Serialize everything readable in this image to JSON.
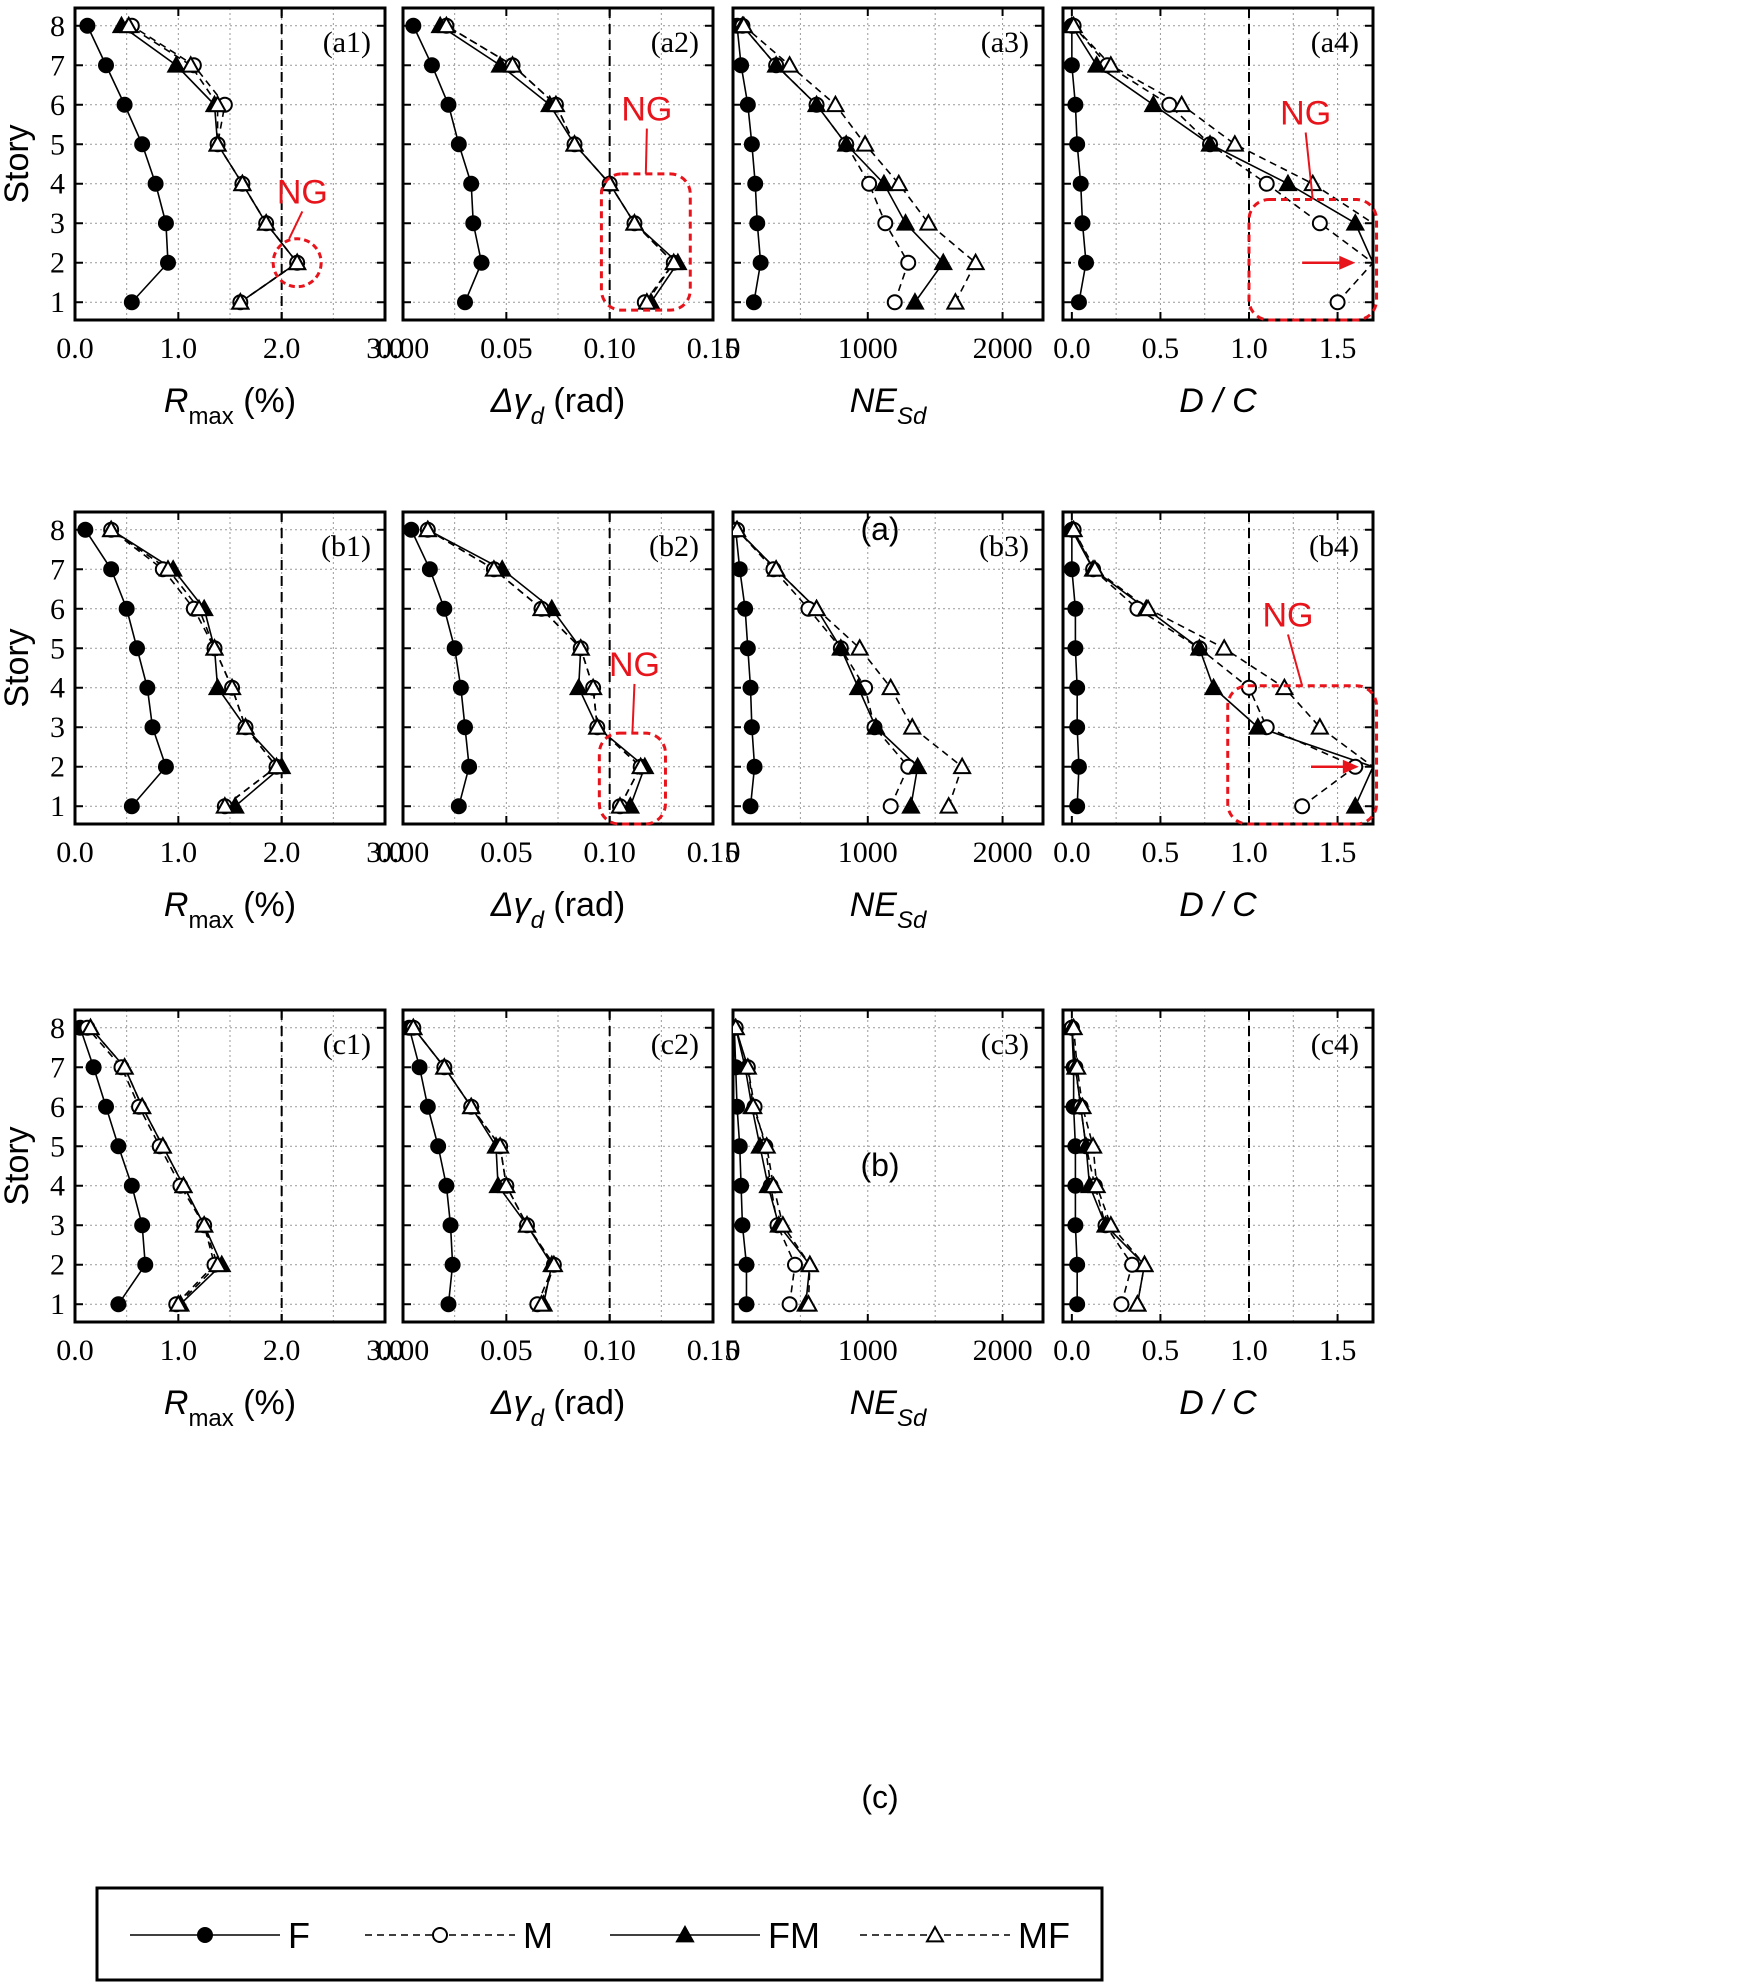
{
  "legend": {
    "entries": [
      {
        "name": "F",
        "marker": "circle",
        "filled": true,
        "dashed": false
      },
      {
        "name": "M",
        "marker": "circle",
        "filled": false,
        "dashed": true
      },
      {
        "name": "FM",
        "marker": "triangle",
        "filled": true,
        "dashed": false
      },
      {
        "name": "MF",
        "marker": "triangle",
        "filled": false,
        "dashed": true
      }
    ]
  },
  "ng_label": "NG",
  "ng_color": "#e8141c",
  "row_captions": [
    "(a)",
    "(b)",
    "(c)"
  ],
  "ylabel": "Story",
  "yticks": [
    "1",
    "2",
    "3",
    "4",
    "5",
    "6",
    "7",
    "8"
  ],
  "chart_data": [
    {
      "type": "line",
      "panel": "(a1)",
      "ylabel": "Story",
      "xlabel_main": "R",
      "xlabel_sub": "max",
      "xlabel_tail": " (%)",
      "xlim": [
        0,
        3.0
      ],
      "xticks": [
        "0.0",
        "1.0",
        "2.0",
        "3.0"
      ],
      "xtick_values": [
        0,
        1,
        2,
        3
      ],
      "limit": 2.0,
      "stories": [
        1,
        2,
        3,
        4,
        5,
        6,
        7,
        8
      ],
      "series": [
        {
          "name": "F",
          "values": [
            0.55,
            0.9,
            0.88,
            0.78,
            0.65,
            0.48,
            0.3,
            0.12
          ]
        },
        {
          "name": "M",
          "values": [
            1.6,
            2.15,
            1.85,
            1.62,
            1.38,
            1.45,
            1.15,
            0.55
          ]
        },
        {
          "name": "FM",
          "values": [
            1.6,
            2.15,
            1.85,
            1.62,
            1.38,
            1.35,
            0.98,
            0.45
          ]
        },
        {
          "name": "MF",
          "values": [
            1.6,
            2.15,
            1.85,
            1.62,
            1.38,
            1.38,
            1.12,
            0.52
          ]
        }
      ],
      "ng": {
        "shape": "circle",
        "x": 2.15,
        "story": 2,
        "text_x": 2.2,
        "text_story": 3.5
      }
    },
    {
      "type": "line",
      "panel": "(a2)",
      "xlabel_main": "Δγ",
      "xlabel_sub": "d",
      "xlabel_tail": " (rad)",
      "xlim": [
        0,
        0.15
      ],
      "xticks": [
        "0.00",
        "0.05",
        "0.10",
        "0.15"
      ],
      "xtick_values": [
        0,
        0.05,
        0.1,
        0.15
      ],
      "limit": 0.1,
      "stories": [
        1,
        2,
        3,
        4,
        5,
        6,
        7,
        8
      ],
      "series": [
        {
          "name": "F",
          "values": [
            0.03,
            0.038,
            0.034,
            0.033,
            0.027,
            0.022,
            0.014,
            0.005
          ]
        },
        {
          "name": "M",
          "values": [
            0.117,
            0.131,
            0.112,
            0.1,
            0.083,
            0.074,
            0.053,
            0.021
          ]
        },
        {
          "name": "FM",
          "values": [
            0.12,
            0.133,
            0.112,
            0.1,
            0.083,
            0.071,
            0.047,
            0.018
          ]
        },
        {
          "name": "MF",
          "values": [
            0.118,
            0.131,
            0.112,
            0.1,
            0.083,
            0.074,
            0.053,
            0.021
          ]
        }
      ],
      "ng": {
        "shape": "rect",
        "x0": 0.096,
        "x1": 0.139,
        "story0": 0.8,
        "story1": 4.25,
        "text_x": 0.118,
        "text_story": 5.6
      }
    },
    {
      "type": "line",
      "panel": "(a3)",
      "xlabel_main": "NE",
      "xlabel_sub": "Sd",
      "xlabel_tail": "",
      "xlim": [
        0,
        2300
      ],
      "xticks": [
        "0",
        "1000",
        "2000"
      ],
      "xtick_values": [
        0,
        1000,
        2000
      ],
      "stories": [
        1,
        2,
        3,
        4,
        5,
        6,
        7,
        8
      ],
      "series": [
        {
          "name": "F",
          "values": [
            155,
            205,
            180,
            165,
            140,
            110,
            60,
            30
          ]
        },
        {
          "name": "M",
          "values": [
            1200,
            1300,
            1130,
            1010,
            840,
            620,
            320,
            70
          ]
        },
        {
          "name": "FM",
          "values": [
            1350,
            1560,
            1280,
            1120,
            840,
            620,
            320,
            70
          ]
        },
        {
          "name": "MF",
          "values": [
            1650,
            1800,
            1450,
            1230,
            980,
            760,
            420,
            80
          ]
        }
      ]
    },
    {
      "type": "line",
      "panel": "(a4)",
      "xlabel_main": "D / C",
      "xlabel_sub": "",
      "xlabel_tail": "",
      "xlim": [
        -0.05,
        1.7
      ],
      "xticks": [
        "0.0",
        "0.5",
        "1.0",
        "1.5"
      ],
      "xtick_values": [
        0,
        0.5,
        1,
        1.5
      ],
      "limit": 1.0,
      "stories": [
        1,
        2,
        3,
        4,
        5,
        6,
        7,
        8
      ],
      "series": [
        {
          "name": "F",
          "values": [
            0.04,
            0.08,
            0.06,
            0.05,
            0.03,
            0.02,
            0.0,
            0.0
          ]
        },
        {
          "name": "M",
          "values": [
            1.5,
            1.82,
            1.4,
            1.1,
            0.78,
            0.55,
            0.2,
            0.01
          ]
        },
        {
          "name": "FM",
          "values": [
            1.75,
            1.85,
            1.6,
            1.22,
            0.78,
            0.46,
            0.14,
            0.0
          ]
        },
        {
          "name": "MF",
          "values": [
            1.8,
            1.9,
            1.8,
            1.36,
            0.92,
            0.62,
            0.22,
            0.01
          ]
        }
      ],
      "ng": {
        "shape": "rect",
        "x0": 1.0,
        "x1": 1.72,
        "story0": 0.55,
        "story1": 3.6,
        "text_x": 1.32,
        "text_story": 5.5,
        "arrow_x0": 1.3,
        "arrow_x1": 1.6,
        "arrow_story": 2
      }
    },
    {
      "type": "line",
      "panel": "(b1)",
      "xlabel_main": "R",
      "xlabel_sub": "max",
      "xlabel_tail": " (%)",
      "xlim": [
        0,
        3.0
      ],
      "xticks": [
        "0.0",
        "1.0",
        "2.0",
        "3.0"
      ],
      "xtick_values": [
        0,
        1,
        2,
        3
      ],
      "limit": 2.0,
      "stories": [
        1,
        2,
        3,
        4,
        5,
        6,
        7,
        8
      ],
      "series": [
        {
          "name": "F",
          "values": [
            0.55,
            0.88,
            0.75,
            0.7,
            0.6,
            0.5,
            0.35,
            0.1
          ]
        },
        {
          "name": "M",
          "values": [
            1.45,
            1.95,
            1.65,
            1.52,
            1.35,
            1.15,
            0.85,
            0.35
          ]
        },
        {
          "name": "FM",
          "values": [
            1.55,
            2.0,
            1.65,
            1.38,
            1.35,
            1.25,
            0.95,
            0.35
          ]
        },
        {
          "name": "MF",
          "values": [
            1.45,
            1.95,
            1.65,
            1.52,
            1.35,
            1.2,
            0.9,
            0.35
          ]
        }
      ]
    },
    {
      "type": "line",
      "panel": "(b2)",
      "xlabel_main": "Δγ",
      "xlabel_sub": "d",
      "xlabel_tail": " (rad)",
      "xlim": [
        0,
        0.15
      ],
      "xticks": [
        "0.00",
        "0.05",
        "0.10",
        "0.15"
      ],
      "xtick_values": [
        0,
        0.05,
        0.1,
        0.15
      ],
      "limit": 0.1,
      "stories": [
        1,
        2,
        3,
        4,
        5,
        6,
        7,
        8
      ],
      "series": [
        {
          "name": "F",
          "values": [
            0.027,
            0.032,
            0.03,
            0.028,
            0.025,
            0.02,
            0.013,
            0.004
          ]
        },
        {
          "name": "M",
          "values": [
            0.105,
            0.115,
            0.094,
            0.092,
            0.086,
            0.067,
            0.044,
            0.012
          ]
        },
        {
          "name": "FM",
          "values": [
            0.11,
            0.117,
            0.094,
            0.085,
            0.086,
            0.072,
            0.048,
            0.012
          ]
        },
        {
          "name": "MF",
          "values": [
            0.105,
            0.115,
            0.094,
            0.092,
            0.086,
            0.067,
            0.044,
            0.012
          ]
        }
      ],
      "ng": {
        "shape": "rect",
        "x0": 0.095,
        "x1": 0.127,
        "story0": 0.55,
        "story1": 2.85,
        "text_x": 0.112,
        "text_story": 4.3
      }
    },
    {
      "type": "line",
      "panel": "(b3)",
      "xlabel_main": "NE",
      "xlabel_sub": "Sd",
      "xlabel_tail": "",
      "xlim": [
        0,
        2300
      ],
      "xticks": [
        "0",
        "1000",
        "2000"
      ],
      "xtick_values": [
        0,
        1000,
        2000
      ],
      "stories": [
        1,
        2,
        3,
        4,
        5,
        6,
        7,
        8
      ],
      "series": [
        {
          "name": "F",
          "values": [
            130,
            160,
            140,
            130,
            110,
            90,
            50,
            20
          ]
        },
        {
          "name": "M",
          "values": [
            1170,
            1300,
            1050,
            980,
            800,
            560,
            300,
            30
          ]
        },
        {
          "name": "FM",
          "values": [
            1320,
            1370,
            1060,
            930,
            800,
            620,
            320,
            30
          ]
        },
        {
          "name": "MF",
          "values": [
            1600,
            1700,
            1330,
            1170,
            940,
            620,
            320,
            30
          ]
        }
      ]
    },
    {
      "type": "line",
      "panel": "(b4)",
      "xlabel_main": "D / C",
      "xlabel_sub": "",
      "xlabel_tail": "",
      "xlim": [
        -0.05,
        1.7
      ],
      "xticks": [
        "0.0",
        "0.5",
        "1.0",
        "1.5"
      ],
      "xtick_values": [
        0,
        0.5,
        1,
        1.5
      ],
      "limit": 1.0,
      "stories": [
        1,
        2,
        3,
        4,
        5,
        6,
        7,
        8
      ],
      "series": [
        {
          "name": "F",
          "values": [
            0.03,
            0.04,
            0.03,
            0.03,
            0.02,
            0.02,
            0.0,
            0.0
          ]
        },
        {
          "name": "M",
          "values": [
            1.3,
            1.6,
            1.1,
            1.0,
            0.72,
            0.37,
            0.12,
            0.01
          ]
        },
        {
          "name": "FM",
          "values": [
            1.6,
            1.75,
            1.05,
            0.8,
            0.72,
            0.42,
            0.12,
            0.0
          ]
        },
        {
          "name": "MF",
          "values": [
            1.8,
            1.9,
            1.4,
            1.2,
            0.86,
            0.43,
            0.13,
            0.01
          ]
        }
      ],
      "ng": {
        "shape": "rect",
        "x0": 0.88,
        "x1": 1.72,
        "story0": 0.55,
        "story1": 4.05,
        "text_x": 1.22,
        "text_story": 5.55,
        "arrow_x0": 1.35,
        "arrow_x1": 1.62,
        "arrow_story": 2
      }
    },
    {
      "type": "line",
      "panel": "(c1)",
      "xlabel_main": "R",
      "xlabel_sub": "max",
      "xlabel_tail": " (%)",
      "xlim": [
        0,
        3.0
      ],
      "xticks": [
        "0.0",
        "1.0",
        "2.0",
        "3.0"
      ],
      "xtick_values": [
        0,
        1,
        2,
        3
      ],
      "limit": 2.0,
      "stories": [
        1,
        2,
        3,
        4,
        5,
        6,
        7,
        8
      ],
      "series": [
        {
          "name": "F",
          "values": [
            0.42,
            0.68,
            0.65,
            0.55,
            0.42,
            0.3,
            0.18,
            0.05
          ]
        },
        {
          "name": "M",
          "values": [
            0.98,
            1.35,
            1.25,
            1.02,
            0.82,
            0.62,
            0.45,
            0.12
          ]
        },
        {
          "name": "FM",
          "values": [
            1.02,
            1.42,
            1.25,
            1.05,
            0.85,
            0.65,
            0.48,
            0.15
          ]
        },
        {
          "name": "MF",
          "values": [
            1.0,
            1.38,
            1.25,
            1.05,
            0.85,
            0.65,
            0.48,
            0.15
          ]
        }
      ]
    },
    {
      "type": "line",
      "panel": "(c2)",
      "xlabel_main": "Δγ",
      "xlabel_sub": "d",
      "xlabel_tail": " (rad)",
      "xlim": [
        0,
        0.15
      ],
      "xticks": [
        "0.00",
        "0.05",
        "0.10",
        "0.15"
      ],
      "xtick_values": [
        0,
        0.05,
        0.1,
        0.15
      ],
      "limit": 0.1,
      "stories": [
        1,
        2,
        3,
        4,
        5,
        6,
        7,
        8
      ],
      "series": [
        {
          "name": "F",
          "values": [
            0.022,
            0.024,
            0.023,
            0.021,
            0.017,
            0.012,
            0.008,
            0.003
          ]
        },
        {
          "name": "M",
          "values": [
            0.065,
            0.073,
            0.06,
            0.05,
            0.047,
            0.033,
            0.02,
            0.005
          ]
        },
        {
          "name": "FM",
          "values": [
            0.068,
            0.072,
            0.06,
            0.046,
            0.045,
            0.033,
            0.02,
            0.005
          ]
        },
        {
          "name": "MF",
          "values": [
            0.067,
            0.073,
            0.06,
            0.05,
            0.047,
            0.033,
            0.02,
            0.005
          ]
        }
      ]
    },
    {
      "type": "line",
      "panel": "(c3)",
      "xlabel_main": "NE",
      "xlabel_sub": "Sd",
      "xlabel_tail": "",
      "xlim": [
        0,
        2300
      ],
      "xticks": [
        "0",
        "1000",
        "2000"
      ],
      "xtick_values": [
        0,
        1000,
        2000
      ],
      "stories": [
        1,
        2,
        3,
        4,
        5,
        6,
        7,
        8
      ],
      "series": [
        {
          "name": "F",
          "values": [
            100,
            100,
            70,
            60,
            50,
            30,
            20,
            10
          ]
        },
        {
          "name": "M",
          "values": [
            420,
            460,
            330,
            280,
            240,
            160,
            110,
            20
          ]
        },
        {
          "name": "FM",
          "values": [
            540,
            570,
            340,
            260,
            200,
            140,
            90,
            20
          ]
        },
        {
          "name": "MF",
          "values": [
            560,
            570,
            370,
            300,
            250,
            150,
            110,
            20
          ]
        }
      ]
    },
    {
      "type": "line",
      "panel": "(c4)",
      "xlabel_main": "D / C",
      "xlabel_sub": "",
      "xlabel_tail": "",
      "xlim": [
        -0.05,
        1.7
      ],
      "xticks": [
        "0.0",
        "0.5",
        "1.0",
        "1.5"
      ],
      "xtick_values": [
        0,
        0.5,
        1,
        1.5
      ],
      "limit": 1.0,
      "stories": [
        1,
        2,
        3,
        4,
        5,
        6,
        7,
        8
      ],
      "series": [
        {
          "name": "F",
          "values": [
            0.03,
            0.03,
            0.02,
            0.02,
            0.02,
            0.01,
            0.01,
            0.0
          ]
        },
        {
          "name": "M",
          "values": [
            0.28,
            0.34,
            0.19,
            0.13,
            0.08,
            0.05,
            0.02,
            0.0
          ]
        },
        {
          "name": "FM",
          "values": [
            0.37,
            0.41,
            0.19,
            0.1,
            0.08,
            0.05,
            0.02,
            0.0
          ]
        },
        {
          "name": "MF",
          "values": [
            0.37,
            0.41,
            0.22,
            0.14,
            0.12,
            0.06,
            0.03,
            0.01
          ]
        }
      ]
    }
  ]
}
